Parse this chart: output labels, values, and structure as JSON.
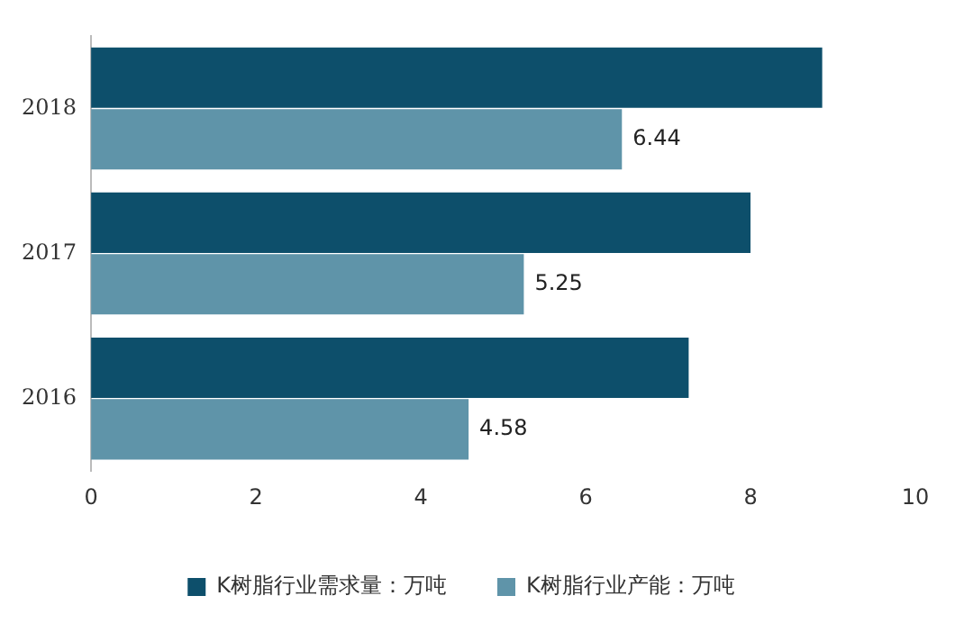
{
  "chart_data": {
    "type": "bar",
    "orientation": "horizontal",
    "categories": [
      "2018",
      "2017",
      "2016"
    ],
    "series": [
      {
        "name": "K树脂行业需求量：万吨",
        "color": "#0d4f6b",
        "values": [
          8.87,
          8.0,
          7.25
        ]
      },
      {
        "name": "K树脂行业产能：万吨",
        "color": "#5f94a9",
        "values": [
          6.44,
          5.25,
          4.58
        ],
        "value_labels": [
          "6.44",
          "5.25",
          "4.58"
        ]
      }
    ],
    "xlim": [
      0,
      10
    ],
    "xticks": [
      0,
      2,
      4,
      6,
      8,
      10
    ],
    "grid": false,
    "legend": "bottom"
  }
}
